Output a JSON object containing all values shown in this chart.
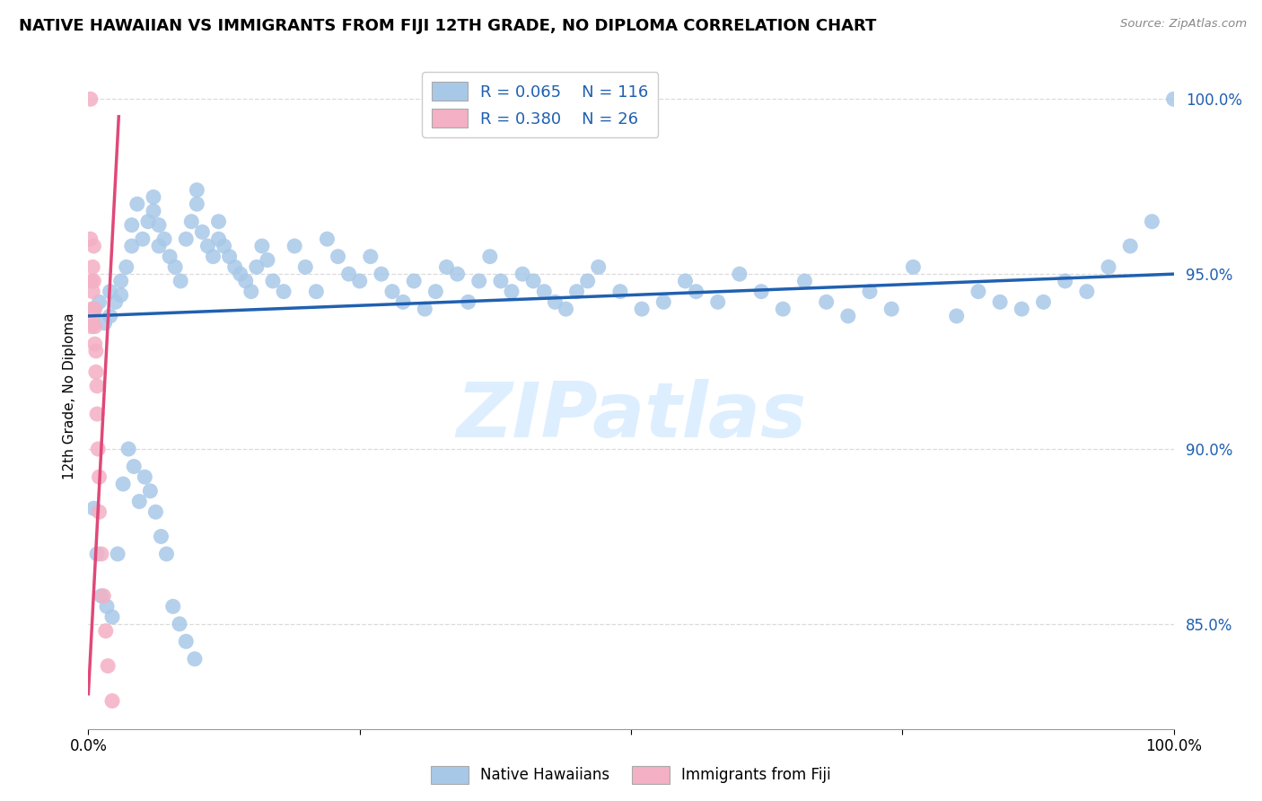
{
  "title": "NATIVE HAWAIIAN VS IMMIGRANTS FROM FIJI 12TH GRADE, NO DIPLOMA CORRELATION CHART",
  "source": "Source: ZipAtlas.com",
  "ylabel": "12th Grade, No Diploma",
  "legend_entries": [
    "Native Hawaiians",
    "Immigrants from Fiji"
  ],
  "blue_R": 0.065,
  "blue_N": 116,
  "pink_R": 0.38,
  "pink_N": 26,
  "blue_scatter_color": "#a8c8e8",
  "pink_scatter_color": "#f4b0c4",
  "blue_line_color": "#2060b0",
  "pink_line_color": "#e04878",
  "blue_text_color": "#2060b0",
  "grid_color": "#d8d8d8",
  "watermark_color": "#ddeeff",
  "xlim": [
    0,
    1
  ],
  "ylim": [
    0.82,
    1.01
  ],
  "yticks": [
    0.85,
    0.9,
    0.95,
    1.0
  ],
  "blue_trend_y": [
    0.938,
    0.95
  ],
  "pink_trend_x": [
    0.0,
    0.028
  ],
  "pink_trend_y": [
    0.83,
    0.995
  ],
  "blue_x": [
    0.005,
    0.01,
    0.015,
    0.02,
    0.02,
    0.025,
    0.03,
    0.03,
    0.035,
    0.04,
    0.04,
    0.045,
    0.05,
    0.055,
    0.06,
    0.06,
    0.065,
    0.065,
    0.07,
    0.075,
    0.08,
    0.085,
    0.09,
    0.095,
    0.1,
    0.1,
    0.105,
    0.11,
    0.115,
    0.12,
    0.12,
    0.125,
    0.13,
    0.135,
    0.14,
    0.145,
    0.15,
    0.155,
    0.16,
    0.165,
    0.17,
    0.18,
    0.19,
    0.2,
    0.21,
    0.22,
    0.23,
    0.24,
    0.25,
    0.26,
    0.27,
    0.28,
    0.29,
    0.3,
    0.31,
    0.32,
    0.33,
    0.34,
    0.35,
    0.36,
    0.37,
    0.38,
    0.39,
    0.4,
    0.41,
    0.42,
    0.43,
    0.44,
    0.45,
    0.46,
    0.47,
    0.49,
    0.51,
    0.53,
    0.55,
    0.56,
    0.58,
    0.6,
    0.62,
    0.64,
    0.66,
    0.68,
    0.7,
    0.72,
    0.74,
    0.76,
    0.8,
    0.82,
    0.84,
    0.86,
    0.88,
    0.9,
    0.92,
    0.94,
    0.96,
    0.98,
    1.0,
    0.005,
    0.008,
    0.012,
    0.017,
    0.022,
    0.027,
    0.032,
    0.037,
    0.042,
    0.047,
    0.052,
    0.057,
    0.062,
    0.067,
    0.072,
    0.078,
    0.084,
    0.09,
    0.098
  ],
  "blue_y": [
    0.94,
    0.942,
    0.936,
    0.938,
    0.945,
    0.942,
    0.948,
    0.944,
    0.952,
    0.964,
    0.958,
    0.97,
    0.96,
    0.965,
    0.968,
    0.972,
    0.958,
    0.964,
    0.96,
    0.955,
    0.952,
    0.948,
    0.96,
    0.965,
    0.97,
    0.974,
    0.962,
    0.958,
    0.955,
    0.96,
    0.965,
    0.958,
    0.955,
    0.952,
    0.95,
    0.948,
    0.945,
    0.952,
    0.958,
    0.954,
    0.948,
    0.945,
    0.958,
    0.952,
    0.945,
    0.96,
    0.955,
    0.95,
    0.948,
    0.955,
    0.95,
    0.945,
    0.942,
    0.948,
    0.94,
    0.945,
    0.952,
    0.95,
    0.942,
    0.948,
    0.955,
    0.948,
    0.945,
    0.95,
    0.948,
    0.945,
    0.942,
    0.94,
    0.945,
    0.948,
    0.952,
    0.945,
    0.94,
    0.942,
    0.948,
    0.945,
    0.942,
    0.95,
    0.945,
    0.94,
    0.948,
    0.942,
    0.938,
    0.945,
    0.94,
    0.952,
    0.938,
    0.945,
    0.942,
    0.94,
    0.942,
    0.948,
    0.945,
    0.952,
    0.958,
    0.965,
    1.0,
    0.883,
    0.87,
    0.858,
    0.855,
    0.852,
    0.87,
    0.89,
    0.9,
    0.895,
    0.885,
    0.892,
    0.888,
    0.882,
    0.875,
    0.87,
    0.855,
    0.85,
    0.845,
    0.84
  ],
  "pink_x": [
    0.002,
    0.002,
    0.003,
    0.003,
    0.003,
    0.004,
    0.004,
    0.004,
    0.005,
    0.005,
    0.006,
    0.006,
    0.006,
    0.007,
    0.007,
    0.008,
    0.008,
    0.009,
    0.01,
    0.01,
    0.012,
    0.014,
    0.016,
    0.018,
    0.022,
    0.026
  ],
  "pink_y": [
    1.0,
    0.96,
    0.948,
    0.94,
    0.935,
    0.952,
    0.945,
    0.938,
    0.958,
    0.948,
    0.94,
    0.935,
    0.93,
    0.928,
    0.922,
    0.918,
    0.91,
    0.9,
    0.892,
    0.882,
    0.87,
    0.858,
    0.848,
    0.838,
    0.828,
    0.808
  ]
}
